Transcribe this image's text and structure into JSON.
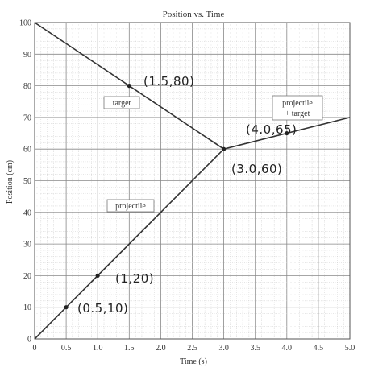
{
  "chart_data": {
    "type": "line",
    "title": "Position vs. Time",
    "xlabel": "Time (s)",
    "ylabel": "Position (cm)",
    "xlim": [
      0,
      5.0
    ],
    "ylim": [
      0,
      100
    ],
    "grid": true,
    "x_ticks": [
      "0",
      "0.5",
      "1.0",
      "1.5",
      "2.0",
      "2.5",
      "3.0",
      "3.5",
      "4.0",
      "4.5",
      "5.0"
    ],
    "y_ticks": [
      "0",
      "10",
      "20",
      "30",
      "40",
      "50",
      "60",
      "70",
      "80",
      "90",
      "100"
    ],
    "series": [
      {
        "name": "target",
        "x": [
          0,
          3.0
        ],
        "y": [
          100,
          60
        ]
      },
      {
        "name": "projectile",
        "x": [
          0,
          3.0
        ],
        "y": [
          0,
          60
        ]
      },
      {
        "name": "projectile + target",
        "x": [
          3.0,
          5.0
        ],
        "y": [
          60,
          70
        ]
      }
    ],
    "marked_points": [
      {
        "x": 0.5,
        "y": 10,
        "label": "(0.5,10)"
      },
      {
        "x": 1.0,
        "y": 20,
        "label": "(1,20)"
      },
      {
        "x": 1.5,
        "y": 80,
        "label": "(1.5,80)"
      },
      {
        "x": 3.0,
        "y": 60,
        "label": "(3.0,60)"
      },
      {
        "x": 4.0,
        "y": 65,
        "label": "(4.0,65)"
      }
    ],
    "boxed_labels": {
      "target": "target",
      "projectile": "projectile",
      "combined_line1": "projectile",
      "combined_line2": "+ target"
    }
  }
}
